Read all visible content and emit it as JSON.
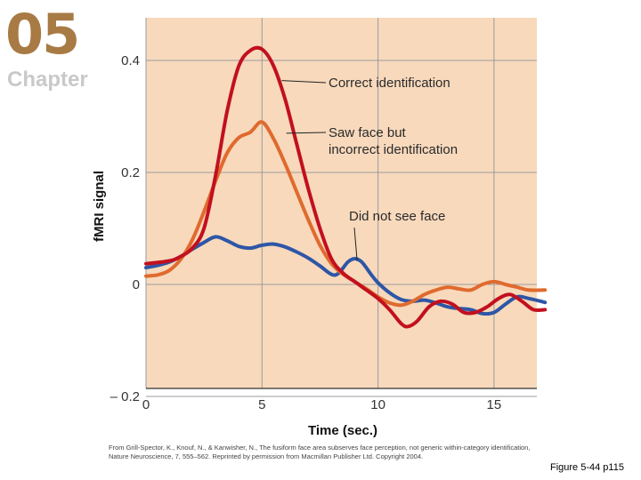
{
  "chapter": {
    "number": "05",
    "word": "Chapter"
  },
  "chart_data": {
    "type": "line",
    "title": "",
    "xlabel": "Time (sec.)",
    "ylabel": "fMRI signal",
    "xlim": [
      0,
      17.5
    ],
    "ylim": [
      -0.2,
      0.46
    ],
    "xticks": [
      0,
      5,
      10,
      15
    ],
    "xtick_labels": [
      "0",
      "5",
      "10",
      "15"
    ],
    "yticks": [
      -0.2,
      0,
      0.2,
      0.4
    ],
    "ytick_labels": [
      "– 0.2",
      "0",
      "0.2",
      "0.4"
    ],
    "grid": true,
    "series": [
      {
        "name": "Correct identification",
        "color": "#c2101e",
        "points": [
          [
            0,
            0.037
          ],
          [
            1,
            0.042
          ],
          [
            1.5,
            0.05
          ],
          [
            2,
            0.065
          ],
          [
            2.5,
            0.1
          ],
          [
            3,
            0.195
          ],
          [
            3.5,
            0.31
          ],
          [
            4,
            0.39
          ],
          [
            4.5,
            0.418
          ],
          [
            5,
            0.42
          ],
          [
            5.5,
            0.39
          ],
          [
            6,
            0.33
          ],
          [
            6.5,
            0.25
          ],
          [
            7,
            0.17
          ],
          [
            7.5,
            0.1
          ],
          [
            8,
            0.045
          ],
          [
            8.5,
            0.02
          ],
          [
            9,
            0.005
          ],
          [
            9.5,
            -0.01
          ],
          [
            10,
            -0.025
          ],
          [
            10.5,
            -0.045
          ],
          [
            11,
            -0.07
          ],
          [
            11.3,
            -0.075
          ],
          [
            11.7,
            -0.065
          ],
          [
            12.2,
            -0.04
          ],
          [
            12.7,
            -0.03
          ],
          [
            13.2,
            -0.035
          ],
          [
            13.7,
            -0.05
          ],
          [
            14.2,
            -0.05
          ],
          [
            14.7,
            -0.04
          ],
          [
            15.2,
            -0.025
          ],
          [
            15.7,
            -0.018
          ],
          [
            16.2,
            -0.03
          ],
          [
            16.7,
            -0.045
          ],
          [
            17.2,
            -0.045
          ]
        ]
      },
      {
        "name": "Saw face but incorrect identification",
        "color": "#e06a2e",
        "points": [
          [
            0,
            0.015
          ],
          [
            0.5,
            0.017
          ],
          [
            1,
            0.025
          ],
          [
            1.5,
            0.045
          ],
          [
            2,
            0.08
          ],
          [
            2.5,
            0.13
          ],
          [
            3,
            0.185
          ],
          [
            3.5,
            0.235
          ],
          [
            4,
            0.262
          ],
          [
            4.5,
            0.272
          ],
          [
            5,
            0.29
          ],
          [
            5.5,
            0.26
          ],
          [
            6,
            0.215
          ],
          [
            6.5,
            0.165
          ],
          [
            7,
            0.115
          ],
          [
            7.5,
            0.07
          ],
          [
            8,
            0.037
          ],
          [
            8.5,
            0.018
          ],
          [
            9,
            0.005
          ],
          [
            9.5,
            -0.008
          ],
          [
            10,
            -0.022
          ],
          [
            10.5,
            -0.033
          ],
          [
            11,
            -0.037
          ],
          [
            11.5,
            -0.03
          ],
          [
            12,
            -0.018
          ],
          [
            12.5,
            -0.01
          ],
          [
            13,
            -0.005
          ],
          [
            13.5,
            -0.008
          ],
          [
            14,
            -0.01
          ],
          [
            14.5,
            0
          ],
          [
            15,
            0.005
          ],
          [
            15.5,
            0
          ],
          [
            16,
            -0.005
          ],
          [
            16.5,
            -0.01
          ],
          [
            17.2,
            -0.01
          ]
        ]
      },
      {
        "name": "Did not see face",
        "color": "#2e56a6",
        "points": [
          [
            0,
            0.03
          ],
          [
            0.5,
            0.034
          ],
          [
            1,
            0.04
          ],
          [
            1.5,
            0.05
          ],
          [
            2,
            0.063
          ],
          [
            2.5,
            0.075
          ],
          [
            3,
            0.085
          ],
          [
            3.5,
            0.078
          ],
          [
            4,
            0.068
          ],
          [
            4.5,
            0.065
          ],
          [
            5,
            0.07
          ],
          [
            5.5,
            0.072
          ],
          [
            6,
            0.067
          ],
          [
            6.5,
            0.058
          ],
          [
            7,
            0.047
          ],
          [
            7.5,
            0.033
          ],
          [
            8,
            0.018
          ],
          [
            8.3,
            0.02
          ],
          [
            8.7,
            0.04
          ],
          [
            9,
            0.046
          ],
          [
            9.3,
            0.04
          ],
          [
            9.7,
            0.018
          ],
          [
            10,
            0.003
          ],
          [
            10.5,
            -0.015
          ],
          [
            11,
            -0.027
          ],
          [
            11.5,
            -0.03
          ],
          [
            12,
            -0.028
          ],
          [
            12.5,
            -0.033
          ],
          [
            13,
            -0.04
          ],
          [
            13.5,
            -0.043
          ],
          [
            14,
            -0.045
          ],
          [
            14.5,
            -0.052
          ],
          [
            15,
            -0.05
          ],
          [
            15.5,
            -0.035
          ],
          [
            16,
            -0.022
          ],
          [
            16.5,
            -0.025
          ],
          [
            17.2,
            -0.032
          ]
        ]
      }
    ],
    "annotations": [
      "Correct identification",
      "Saw face but",
      "incorrect identification",
      "Did not see face"
    ]
  },
  "credit": {
    "line1": "From Grill-Spector, K., Knouf, N., & Kanwisher, N., The fusiform face area subserves face perception, not generic within-category identification,",
    "line2": "Nature Neuroscience, 7, 555–562. Reprinted by permission from Macmillan Publisher Ltd. Copyright 2004."
  },
  "figure_ref": "Figure 5-44 p115",
  "colors": {
    "plot_bg": "#f8d9bc",
    "grid": "#9b9b9b",
    "axis": "#333333",
    "chapter": "#a87a44"
  }
}
